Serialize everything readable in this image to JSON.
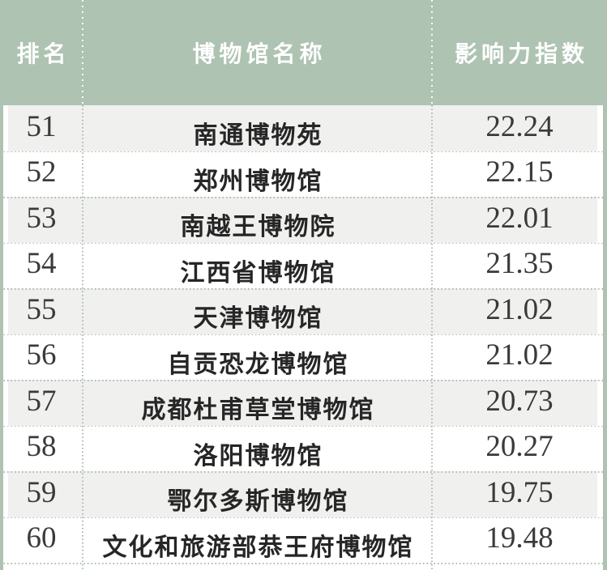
{
  "chart_data": {
    "type": "table",
    "title": "",
    "columns": [
      {
        "label": "排名"
      },
      {
        "label": "博物馆名称"
      },
      {
        "label": "影响力指数"
      }
    ],
    "rows": [
      {
        "rank": "51",
        "name": "南通博物苑",
        "index": "22.24"
      },
      {
        "rank": "52",
        "name": "郑州博物馆",
        "index": "22.15"
      },
      {
        "rank": "53",
        "name": "南越王博物院",
        "index": "22.01"
      },
      {
        "rank": "54",
        "name": "江西省博物馆",
        "index": "21.35"
      },
      {
        "rank": "55",
        "name": "天津博物馆",
        "index": "21.02"
      },
      {
        "rank": "56",
        "name": "自贡恐龙博物馆",
        "index": "21.02"
      },
      {
        "rank": "57",
        "name": "成都杜甫草堂博物馆",
        "index": "20.73"
      },
      {
        "rank": "58",
        "name": "洛阳博物馆",
        "index": "20.27"
      },
      {
        "rank": "59",
        "name": "鄂尔多斯博物馆",
        "index": "19.75"
      },
      {
        "rank": "60",
        "name": "文化和旅游部恭王府博物馆",
        "index": "19.48"
      }
    ]
  },
  "colors": {
    "header_bg": "#aec3b2",
    "header_text": "#ffffff",
    "row_stripe_bg": "#f0f0ef",
    "row_bg": "#ffffff",
    "edge_strip": "#aec3b2",
    "grid_dots": "#a9bcac",
    "number_text": "#3a3a3a",
    "name_text": "#262626"
  }
}
